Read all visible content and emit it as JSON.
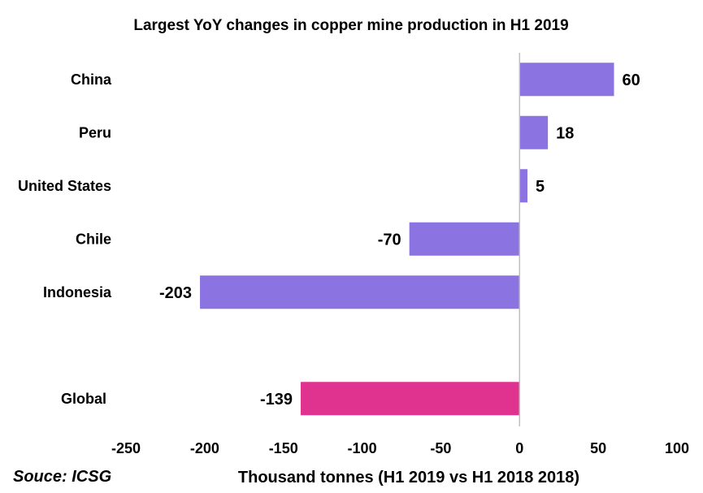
{
  "chart_data": {
    "type": "bar",
    "orientation": "horizontal",
    "title": "Largest YoY changes in copper mine production in H1 2019",
    "xlabel": "Thousand tonnes (H1 2019 vs H1 2018 2018)",
    "ylabel": "",
    "source": "Souce: ICSG",
    "xlim": [
      -250,
      100
    ],
    "xticks": [
      -250,
      -200,
      -150,
      -100,
      -50,
      0,
      50,
      100
    ],
    "grid": false,
    "legend": "none",
    "categories": [
      "China",
      "Peru",
      "United States",
      "Chile",
      "Indonesia",
      "",
      "Global"
    ],
    "values": [
      60,
      18,
      5,
      -70,
      -203,
      null,
      -139
    ],
    "value_labels": [
      "60",
      "18",
      "5",
      "-70",
      "-203",
      "",
      "-139"
    ],
    "colors": {
      "country_bar": "#8b73e2",
      "global_bar": "#e0328f",
      "axis": "#bfbfbf"
    }
  }
}
